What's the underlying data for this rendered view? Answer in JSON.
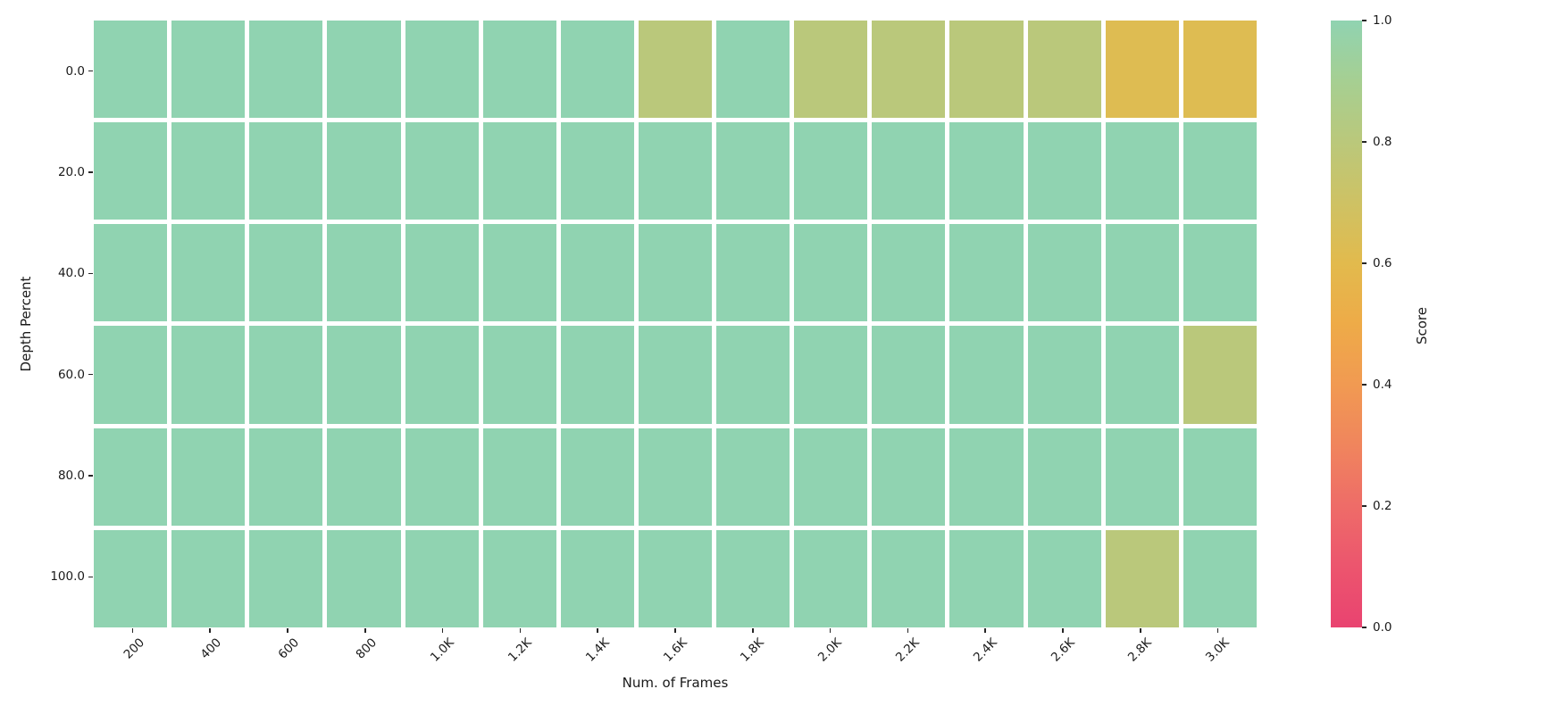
{
  "figure": {
    "background_color": "#ffffff",
    "tick_color": "#262626",
    "text_color": "#1a1a1a",
    "cell_gap_color": "#ffffff"
  },
  "chart_data": {
    "type": "heatmap",
    "title": "",
    "xlabel": "Num. of Frames",
    "ylabel": "Depth Percent",
    "x_ticklabels": [
      "200",
      "400",
      "600",
      "800",
      "1.0K",
      "1.2K",
      "1.4K",
      "1.6K",
      "1.8K",
      "2.0K",
      "2.2K",
      "2.4K",
      "2.6K",
      "2.8K",
      "3.0K"
    ],
    "y_ticklabels": [
      "0.0",
      "20.0",
      "40.0",
      "60.0",
      "80.0",
      "100.0"
    ],
    "values": [
      [
        1.0,
        1.0,
        1.0,
        1.0,
        1.0,
        1.0,
        1.0,
        0.8,
        1.0,
        0.8,
        0.8,
        0.8,
        0.8,
        0.62,
        0.62
      ],
      [
        1.0,
        1.0,
        1.0,
        1.0,
        1.0,
        1.0,
        1.0,
        1.0,
        1.0,
        1.0,
        1.0,
        1.0,
        1.0,
        1.0,
        1.0
      ],
      [
        1.0,
        1.0,
        1.0,
        1.0,
        1.0,
        1.0,
        1.0,
        1.0,
        1.0,
        1.0,
        1.0,
        1.0,
        1.0,
        1.0,
        1.0
      ],
      [
        1.0,
        1.0,
        1.0,
        1.0,
        1.0,
        1.0,
        1.0,
        1.0,
        1.0,
        1.0,
        1.0,
        1.0,
        1.0,
        1.0,
        0.8
      ],
      [
        1.0,
        1.0,
        1.0,
        1.0,
        1.0,
        1.0,
        1.0,
        1.0,
        1.0,
        1.0,
        1.0,
        1.0,
        1.0,
        1.0,
        1.0
      ],
      [
        1.0,
        1.0,
        1.0,
        1.0,
        1.0,
        1.0,
        1.0,
        1.0,
        1.0,
        1.0,
        1.0,
        1.0,
        1.0,
        0.8,
        1.0
      ]
    ],
    "value_range": [
      0.0,
      1.0
    ],
    "grid": false,
    "colorbar": {
      "label": "Score",
      "tick_labels": [
        "1.0",
        "0.8",
        "0.6",
        "0.4",
        "0.2",
        "0.0"
      ],
      "min": 0.0,
      "max": 1.0,
      "colormap_stops": [
        {
          "value": 0.0,
          "color": "#e94370"
        },
        {
          "value": 0.1,
          "color": "#ec556e"
        },
        {
          "value": 0.2,
          "color": "#ee6c68"
        },
        {
          "value": 0.3,
          "color": "#f0855d"
        },
        {
          "value": 0.4,
          "color": "#f19a52"
        },
        {
          "value": 0.5,
          "color": "#eeab48"
        },
        {
          "value": 0.6,
          "color": "#e2ba4d"
        },
        {
          "value": 0.7,
          "color": "#cec264"
        },
        {
          "value": 0.8,
          "color": "#bac87b"
        },
        {
          "value": 0.9,
          "color": "#a6cf92"
        },
        {
          "value": 1.0,
          "color": "#90d3b1"
        }
      ]
    }
  }
}
